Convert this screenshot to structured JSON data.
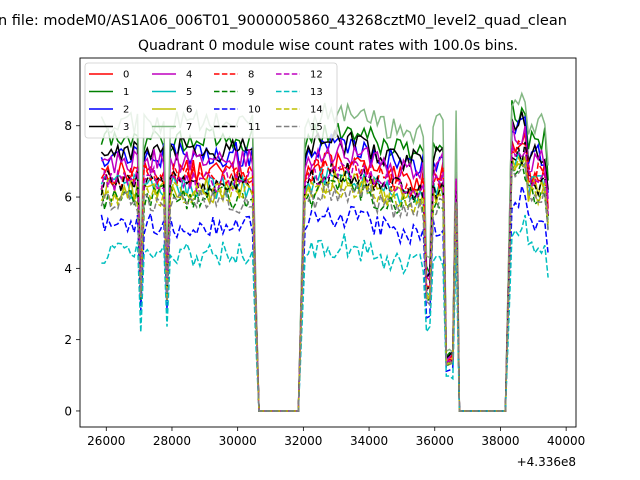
{
  "figure": {
    "suptitle": "n file: modeM0/AS1A06_006T01_9000005860_43268cztM0_level2_quad_clean"
  },
  "chart_data": {
    "type": "line",
    "title": "Quadrant 0 module wise count rates with 100.0s bins.",
    "xlabel": "",
    "ylabel": "",
    "x_offset_label": "+4.336e8",
    "xlim": [
      25200,
      40300
    ],
    "ylim": [
      -0.45,
      9.9
    ],
    "xticks": [
      26000,
      28000,
      30000,
      32000,
      34000,
      36000,
      38000,
      40000
    ],
    "xtick_labels": [
      "26000",
      "28000",
      "30000",
      "32000",
      "34000",
      "36000",
      "38000",
      "40000"
    ],
    "yticks": [
      0,
      2,
      4,
      6,
      8
    ],
    "ytick_labels": [
      "0",
      "2",
      "4",
      "6",
      "8"
    ],
    "grid": false,
    "legend": {
      "placement": "top-left",
      "ncol": 4
    },
    "segments": [
      [
        25850,
        30500
      ],
      [
        32000,
        36300
      ],
      [
        36600,
        38300
      ],
      [
        38300,
        39500
      ]
    ],
    "zero_regions": [
      [
        30600,
        31900
      ],
      [
        36700,
        38200
      ]
    ],
    "dips": [
      27050,
      27850,
      35800
    ],
    "series": [
      {
        "name": "0",
        "color": "#ff0000",
        "style": "solid",
        "level": 6.7
      },
      {
        "name": "1",
        "color": "#008000",
        "style": "solid",
        "level": 7.6
      },
      {
        "name": "2",
        "color": "#0000ff",
        "style": "solid",
        "level": 7.2
      },
      {
        "name": "3",
        "color": "#000000",
        "style": "solid",
        "level": 7.3
      },
      {
        "name": "4",
        "color": "#bf00bf",
        "style": "solid",
        "level": 7.0
      },
      {
        "name": "5",
        "color": "#00bfbf",
        "style": "solid",
        "level": 6.3
      },
      {
        "name": "6",
        "color": "#bfbf00",
        "style": "solid",
        "level": 6.2
      },
      {
        "name": "7",
        "color": "#84b884",
        "style": "solid",
        "level": 8.1
      },
      {
        "name": "8",
        "color": "#ff0000",
        "style": "dashed",
        "level": 6.6
      },
      {
        "name": "9",
        "color": "#008000",
        "style": "dashed",
        "level": 6.0
      },
      {
        "name": "10",
        "color": "#0000ff",
        "style": "dashed",
        "level": 5.2
      },
      {
        "name": "11",
        "color": "#000000",
        "style": "dashed",
        "level": 6.4
      },
      {
        "name": "12",
        "color": "#bf00bf",
        "style": "dashed",
        "level": 6.5
      },
      {
        "name": "13",
        "color": "#00bfbf",
        "style": "dashed",
        "level": 4.4
      },
      {
        "name": "14",
        "color": "#bfbf00",
        "style": "dashed",
        "level": 6.1
      },
      {
        "name": "15",
        "color": "#808080",
        "style": "dashed",
        "level": 5.9
      }
    ]
  }
}
